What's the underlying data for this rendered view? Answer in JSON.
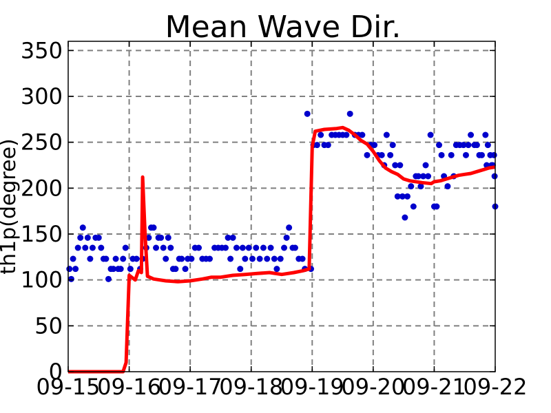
{
  "chart_data": {
    "type": "line",
    "title": "Mean Wave Dir.",
    "xlabel": "",
    "ylabel": "th1p(degree)",
    "xlim": [
      0,
      7
    ],
    "ylim": [
      0,
      360
    ],
    "x_ticks": [
      0,
      1,
      2,
      3,
      4,
      5,
      6,
      7
    ],
    "x_tick_labels": [
      "09-15",
      "09-16",
      "09-17",
      "09-18",
      "09-19",
      "09-20",
      "09-21",
      "09-22"
    ],
    "y_ticks": [
      0,
      50,
      100,
      150,
      200,
      250,
      300,
      350
    ],
    "grid": true,
    "series": [
      {
        "type": "scatter",
        "color": "#0000cc",
        "points": [
          [
            0.02,
            112
          ],
          [
            0.05,
            101
          ],
          [
            0.08,
            123
          ],
          [
            0.12,
            112
          ],
          [
            0.16,
            135
          ],
          [
            0.2,
            146
          ],
          [
            0.24,
            157
          ],
          [
            0.28,
            135
          ],
          [
            0.32,
            146
          ],
          [
            0.36,
            123
          ],
          [
            0.4,
            135
          ],
          [
            0.45,
            146
          ],
          [
            0.5,
            146
          ],
          [
            0.54,
            135
          ],
          [
            0.58,
            123
          ],
          [
            0.62,
            123
          ],
          [
            0.66,
            101
          ],
          [
            0.7,
            112
          ],
          [
            0.74,
            112
          ],
          [
            0.78,
            123
          ],
          [
            0.82,
            112
          ],
          [
            0.86,
            112
          ],
          [
            0.9,
            123
          ],
          [
            0.94,
            135
          ],
          [
            1.02,
            112
          ],
          [
            1.06,
            123
          ],
          [
            1.12,
            123
          ],
          [
            1.18,
            112
          ],
          [
            1.22,
            123
          ],
          [
            1.28,
            135
          ],
          [
            1.32,
            146
          ],
          [
            1.36,
            157
          ],
          [
            1.4,
            157
          ],
          [
            1.44,
            135
          ],
          [
            1.48,
            146
          ],
          [
            1.52,
            146
          ],
          [
            1.56,
            135
          ],
          [
            1.6,
            123
          ],
          [
            1.64,
            146
          ],
          [
            1.68,
            135
          ],
          [
            1.72,
            112
          ],
          [
            1.76,
            112
          ],
          [
            1.82,
            123
          ],
          [
            1.86,
            123
          ],
          [
            1.92,
            112
          ],
          [
            1.96,
            123
          ],
          [
            2.02,
            123
          ],
          [
            2.08,
            135
          ],
          [
            2.14,
            135
          ],
          [
            2.2,
            123
          ],
          [
            2.26,
            123
          ],
          [
            2.32,
            123
          ],
          [
            2.4,
            135
          ],
          [
            2.46,
            135
          ],
          [
            2.52,
            135
          ],
          [
            2.58,
            135
          ],
          [
            2.62,
            146
          ],
          [
            2.66,
            123
          ],
          [
            2.7,
            146
          ],
          [
            2.76,
            135
          ],
          [
            2.82,
            112
          ],
          [
            2.86,
            135
          ],
          [
            2.9,
            123
          ],
          [
            2.96,
            135
          ],
          [
            3.02,
            123
          ],
          [
            3.08,
            135
          ],
          [
            3.14,
            123
          ],
          [
            3.2,
            135
          ],
          [
            3.26,
            123
          ],
          [
            3.32,
            135
          ],
          [
            3.38,
            123
          ],
          [
            3.42,
            112
          ],
          [
            3.48,
            123
          ],
          [
            3.54,
            135
          ],
          [
            3.58,
            146
          ],
          [
            3.62,
            157
          ],
          [
            3.68,
            135
          ],
          [
            3.72,
            135
          ],
          [
            3.78,
            123
          ],
          [
            3.84,
            123
          ],
          [
            3.88,
            112
          ],
          [
            3.92,
            281
          ],
          [
            3.98,
            112
          ],
          [
            4.02,
            247
          ],
          [
            4.08,
            247
          ],
          [
            4.14,
            258
          ],
          [
            4.2,
            247
          ],
          [
            4.26,
            247
          ],
          [
            4.32,
            258
          ],
          [
            4.38,
            258
          ],
          [
            4.44,
            258
          ],
          [
            4.5,
            258
          ],
          [
            4.56,
            258
          ],
          [
            4.62,
            281
          ],
          [
            4.7,
            258
          ],
          [
            4.76,
            258
          ],
          [
            4.82,
            258
          ],
          [
            4.9,
            236
          ],
          [
            4.96,
            247
          ],
          [
            5.02,
            247
          ],
          [
            5.08,
            236
          ],
          [
            5.14,
            236
          ],
          [
            5.18,
            225
          ],
          [
            5.22,
            258
          ],
          [
            5.28,
            236
          ],
          [
            5.32,
            247
          ],
          [
            5.36,
            225
          ],
          [
            5.4,
            191
          ],
          [
            5.44,
            225
          ],
          [
            5.48,
            191
          ],
          [
            5.52,
            168
          ],
          [
            5.56,
            191
          ],
          [
            5.62,
            202
          ],
          [
            5.66,
            180
          ],
          [
            5.7,
            213
          ],
          [
            5.74,
            213
          ],
          [
            5.78,
            202
          ],
          [
            5.82,
            213
          ],
          [
            5.86,
            225
          ],
          [
            5.9,
            213
          ],
          [
            5.94,
            258
          ],
          [
            6.0,
            180
          ],
          [
            6.04,
            180
          ],
          [
            6.08,
            247
          ],
          [
            6.12,
            236
          ],
          [
            6.16,
            213
          ],
          [
            6.22,
            202
          ],
          [
            6.28,
            236
          ],
          [
            6.32,
            213
          ],
          [
            6.36,
            247
          ],
          [
            6.42,
            247
          ],
          [
            6.48,
            247
          ],
          [
            6.52,
            236
          ],
          [
            6.56,
            247
          ],
          [
            6.6,
            258
          ],
          [
            6.66,
            247
          ],
          [
            6.7,
            247
          ],
          [
            6.74,
            236
          ],
          [
            6.78,
            236
          ],
          [
            6.84,
            258
          ],
          [
            6.88,
            247
          ],
          [
            6.92,
            236
          ],
          [
            6.96,
            225
          ],
          [
            7.0,
            180
          ],
          [
            6.86,
            225
          ],
          [
            6.98,
            236
          ],
          [
            6.94,
            225
          ],
          [
            6.99,
            213
          ]
        ]
      },
      {
        "type": "line",
        "color": "#ff0000",
        "points": [
          [
            0.0,
            0
          ],
          [
            0.9,
            0
          ],
          [
            0.95,
            10
          ],
          [
            1.0,
            105
          ],
          [
            1.1,
            100
          ],
          [
            1.15,
            110
          ],
          [
            1.2,
            108
          ],
          [
            1.22,
            212
          ],
          [
            1.26,
            150
          ],
          [
            1.3,
            104
          ],
          [
            1.4,
            101
          ],
          [
            1.6,
            99
          ],
          [
            1.8,
            98
          ],
          [
            2.0,
            99
          ],
          [
            2.2,
            101
          ],
          [
            2.35,
            103
          ],
          [
            2.5,
            103
          ],
          [
            2.7,
            105
          ],
          [
            2.9,
            106
          ],
          [
            3.1,
            107
          ],
          [
            3.3,
            108
          ],
          [
            3.5,
            106
          ],
          [
            3.7,
            108
          ],
          [
            3.85,
            110
          ],
          [
            3.95,
            112
          ],
          [
            4.0,
            245
          ],
          [
            4.05,
            262
          ],
          [
            4.2,
            264
          ],
          [
            4.4,
            265
          ],
          [
            4.5,
            266
          ],
          [
            4.6,
            263
          ],
          [
            4.7,
            258
          ],
          [
            4.8,
            252
          ],
          [
            4.9,
            248
          ],
          [
            5.0,
            240
          ],
          [
            5.1,
            230
          ],
          [
            5.2,
            222
          ],
          [
            5.3,
            218
          ],
          [
            5.4,
            215
          ],
          [
            5.5,
            210
          ],
          [
            5.6,
            208
          ],
          [
            5.8,
            206
          ],
          [
            5.95,
            205
          ],
          [
            6.0,
            207
          ],
          [
            6.1,
            208
          ],
          [
            6.2,
            210
          ],
          [
            6.3,
            212
          ],
          [
            6.4,
            214
          ],
          [
            6.5,
            215
          ],
          [
            6.6,
            216
          ],
          [
            6.7,
            218
          ],
          [
            6.8,
            220
          ],
          [
            6.9,
            222
          ],
          [
            7.0,
            223
          ]
        ]
      }
    ]
  }
}
